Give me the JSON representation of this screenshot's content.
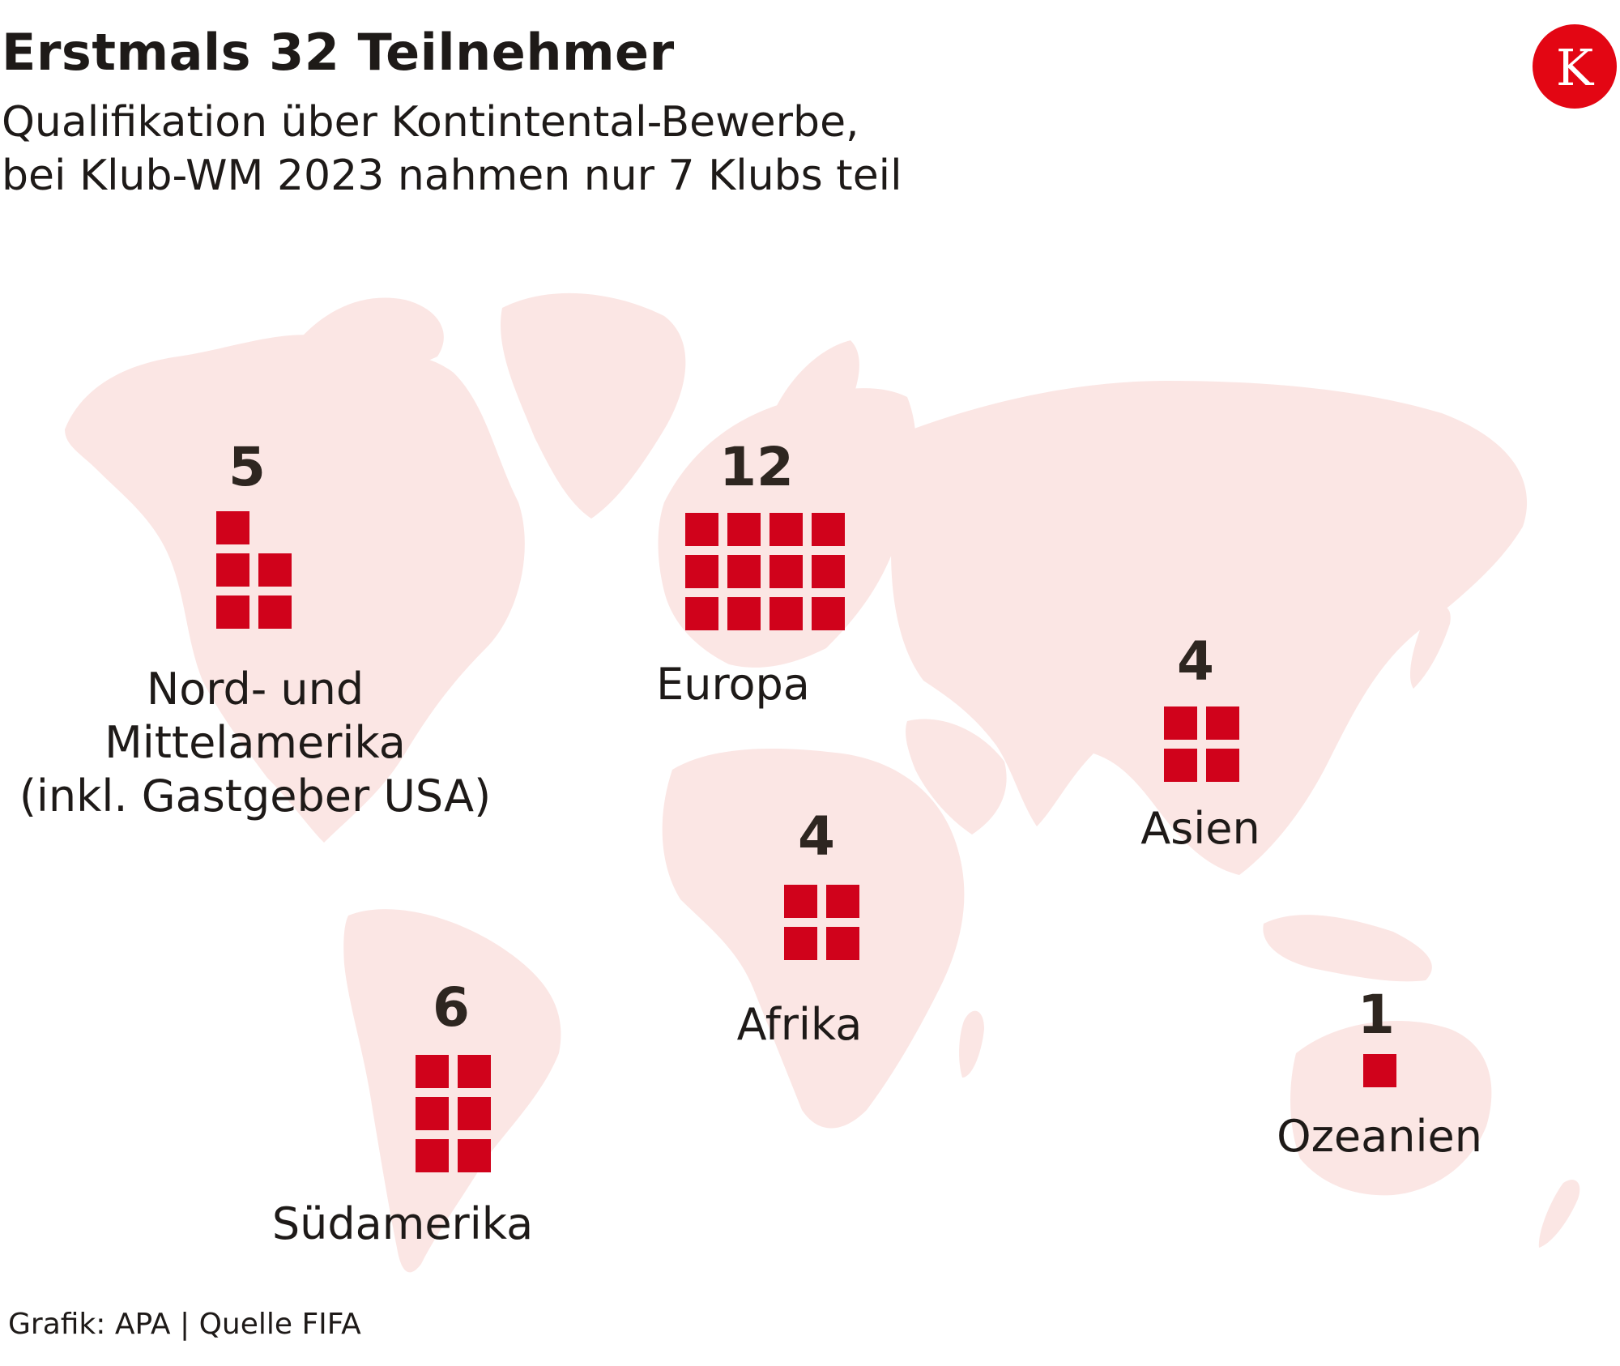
{
  "header": {
    "title": "Erstmals 32 Teilnehmer",
    "subtitle_lines": [
      "Qualifikation über Kontintental-Bewerbe,",
      "bei Klub-WM 2023 nahmen nur 7 Klubs teil"
    ]
  },
  "logo": {
    "letter": "K",
    "color": "#e30613"
  },
  "colors": {
    "land": "#fbe6e4",
    "square": "#d0021b",
    "text": "#1e1a18"
  },
  "regions": [
    {
      "id": "nord-mittelamerika",
      "count": "5",
      "squares": 5,
      "label_lines": [
        "Nord- und",
        "Mittelamerika",
        "(inkl. Gastgeber USA)"
      ]
    },
    {
      "id": "europa",
      "count": "12",
      "squares": 12,
      "label_lines": [
        "Europa"
      ]
    },
    {
      "id": "asien",
      "count": "4",
      "squares": 4,
      "label_lines": [
        "Asien"
      ]
    },
    {
      "id": "afrika",
      "count": "4",
      "squares": 4,
      "label_lines": [
        "Afrika"
      ]
    },
    {
      "id": "suedamerika",
      "count": "6",
      "squares": 6,
      "label_lines": [
        "Südamerika"
      ]
    },
    {
      "id": "ozeanien",
      "count": "1",
      "squares": 1,
      "label_lines": [
        "Ozeanien"
      ]
    }
  ],
  "source": {
    "grafik": "Grafik: APA",
    "separator": "|",
    "quelle": "Quelle FIFA"
  }
}
